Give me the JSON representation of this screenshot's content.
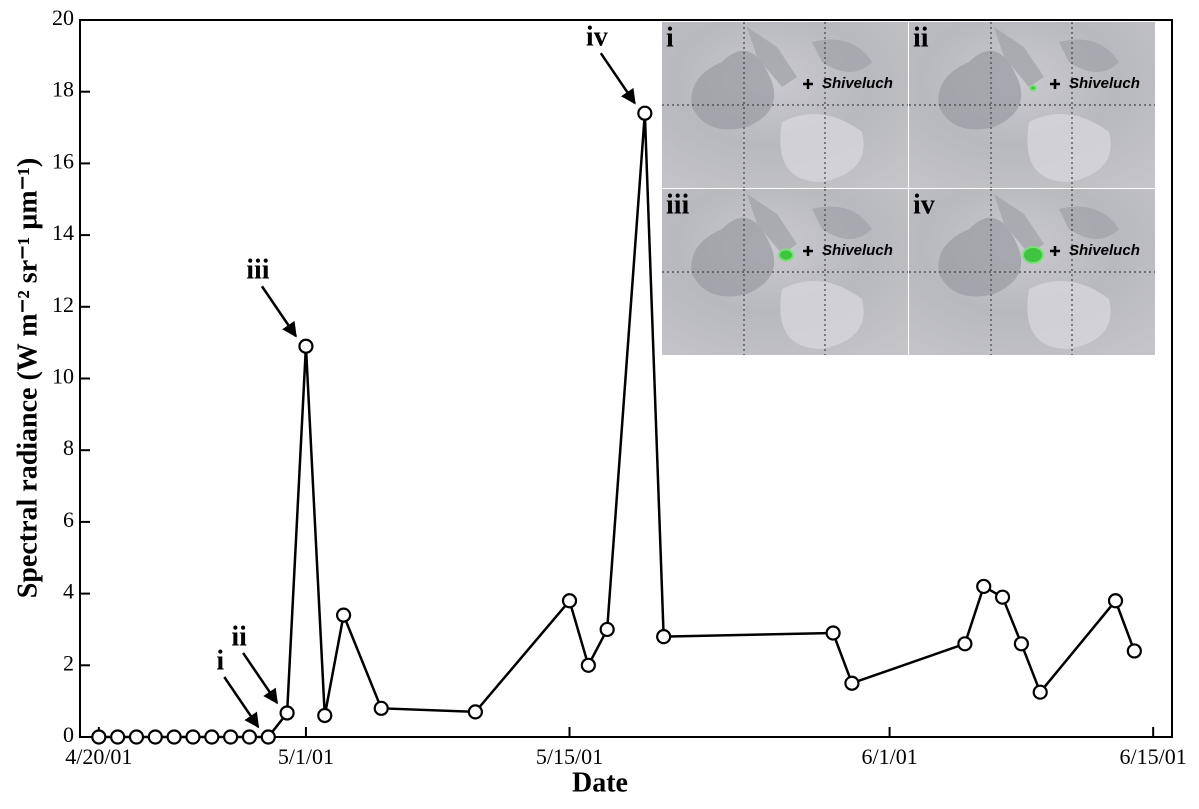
{
  "chart_data": {
    "type": "line",
    "xlabel": "Date",
    "ylabel": "Spectral radiance (W m⁻² sr⁻¹ µm⁻¹)",
    "x": [
      "4/20/01",
      "4/21/01",
      "4/22/01",
      "4/23/01",
      "4/24/01",
      "4/25/01",
      "4/26/01",
      "4/27/01",
      "4/28/01",
      "4/29/01",
      "4/30/01",
      "5/1/01",
      "5/2/01",
      "5/3/01",
      "5/5/01",
      "5/10/01",
      "5/15/01",
      "5/16/01",
      "5/17/01",
      "5/19/01",
      "5/20/01",
      "5/29/01",
      "5/30/01",
      "6/5/01",
      "6/6/01",
      "6/7/01",
      "6/8/01",
      "6/9/01",
      "6/13/01",
      "6/14/01"
    ],
    "values": [
      0,
      0,
      0,
      0,
      0,
      0,
      0,
      0,
      0,
      0,
      0.67,
      10.9,
      0.6,
      3.4,
      0.8,
      0.7,
      3.8,
      2.0,
      3.0,
      17.4,
      2.8,
      2.9,
      1.5,
      2.6,
      4.2,
      3.9,
      2.6,
      1.25,
      3.8,
      2.4
    ],
    "color": "#000000",
    "xlim": [
      "4/19/01",
      "6/16/01"
    ],
    "xticks": [
      "4/20/01",
      "5/1/01",
      "5/15/01",
      "6/1/01",
      "6/15/01"
    ],
    "ylim": [
      0,
      20
    ],
    "yticks": [
      0,
      2,
      4,
      6,
      8,
      10,
      12,
      14,
      16,
      18,
      20
    ],
    "annotations": [
      {
        "text": "i",
        "x": "4/29/01",
        "y": 0
      },
      {
        "text": "ii",
        "x": "4/30/01",
        "y": 0.67
      },
      {
        "text": "iii",
        "x": "5/1/01",
        "y": 10.9
      },
      {
        "text": "iv",
        "x": "5/19/01",
        "y": 17.4
      }
    ],
    "inset": {
      "panels": [
        "i",
        "ii",
        "iii",
        "iv"
      ],
      "site": "Shiveluch"
    }
  }
}
